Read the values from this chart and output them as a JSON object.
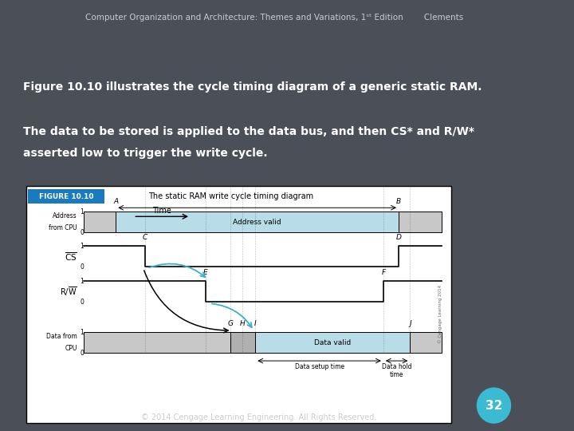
{
  "bg_color": "#4a4f58",
  "stripe_color": "#a8ccd8",
  "header_bg": "#555d66",
  "header_text": "Computer Organization and Architecture: Themes and Variations, 1ˢᵗ Edition        Clements",
  "line1": "Figure 10.10 illustrates the cycle timing diagram of a generic static RAM.",
  "line2": "The data to be stored is applied to the data bus, and then CS* and R/W*",
  "line3": "asserted low to trigger the write cycle.",
  "footer": "© 2014 Cengage Learning Engineering. All Rights Reserved.",
  "page_num": "32",
  "page_circle_color": "#3bbad4",
  "figure_label": "FIGURE 10.10",
  "figure_label_bg": "#1a7abf",
  "figure_title": "The static RAM write cycle timing diagram",
  "diagram_bg": "#ffffff",
  "addr_valid_color": "#b8dce8",
  "data_valid_color": "#b8dce8",
  "gray_color": "#c8c8c8",
  "cross_color": "#b0b0b0",
  "arrow_cyan": "#3ab0cc",
  "arrow_black": "#000000",
  "text_color": "#ffffff",
  "signal_color": "#000000"
}
